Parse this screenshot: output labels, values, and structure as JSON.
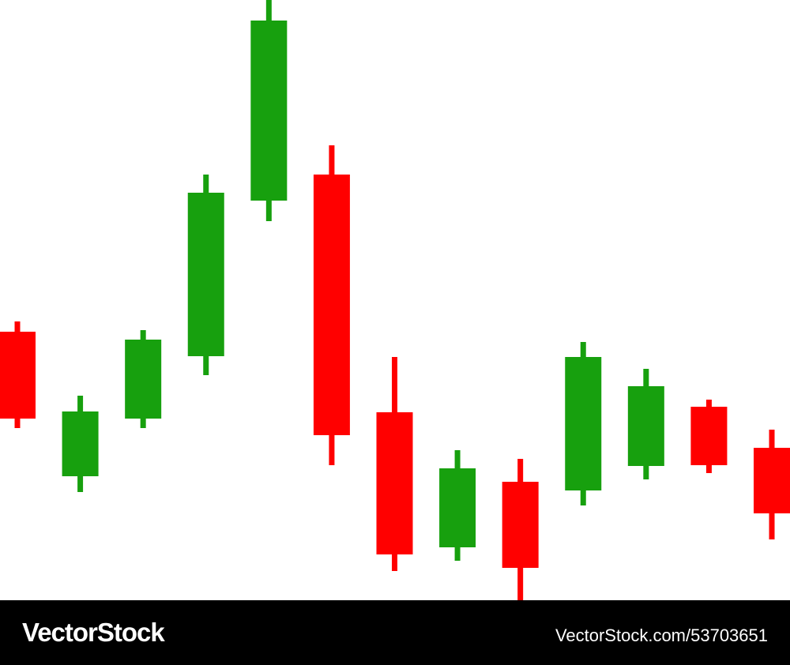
{
  "chart_data": {
    "type": "candlestick",
    "categories": [
      null,
      null,
      null,
      null,
      null,
      null,
      null,
      null,
      null,
      null,
      null,
      null,
      null
    ],
    "open": [
      340,
      157,
      230,
      309,
      506,
      539,
      238,
      67,
      150,
      139,
      170,
      245,
      193
    ],
    "high": [
      353,
      259,
      342,
      539,
      760,
      576,
      308,
      190,
      179,
      327,
      293,
      254,
      216
    ],
    "low": [
      218,
      137,
      218,
      285,
      480,
      171,
      37,
      50,
      0,
      120,
      153,
      161,
      77
    ],
    "close": [
      230,
      239,
      330,
      516,
      734,
      209,
      58,
      167,
      41,
      308,
      271,
      171,
      110
    ],
    "up_color": "#17a00e",
    "down_color": "#ff0000",
    "ylim": [
      0,
      760
    ]
  },
  "footer": {
    "brand": "VectorStock",
    "url": "VectorStock.com/53703651"
  }
}
